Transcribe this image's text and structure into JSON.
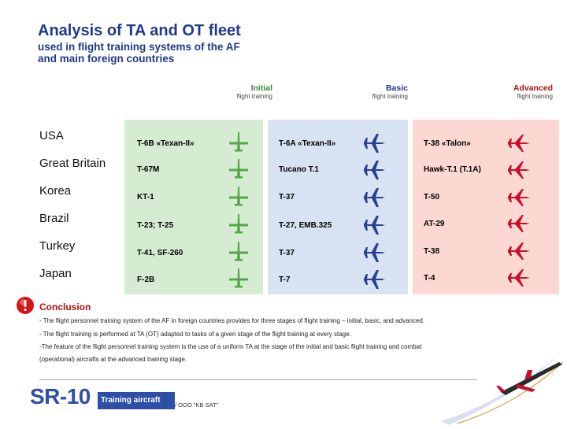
{
  "header": {
    "title": "Analysis of TA and OT fleet",
    "subtitle_line1": "used in flight training systems of the AF",
    "subtitle_line2": "and main foreign countries"
  },
  "stages": {
    "initial": {
      "label": "Initial",
      "sub": "flight training",
      "color": "#3a8a3a"
    },
    "basic": {
      "label": "Basic",
      "sub": "flight training",
      "color": "#1f3a8a"
    },
    "advanced": {
      "label": "Advanced",
      "sub": "flight training",
      "color": "#b01010"
    }
  },
  "countries": [
    "USA",
    "Great Britain",
    "Korea",
    "Brazil",
    "Turkey",
    "Japan"
  ],
  "initial_aircraft": [
    "T-6B «Texan-II»",
    "T-67M",
    "KT-1",
    "T-23; T-25",
    "T-41, SF-260",
    "F-2B"
  ],
  "basic_aircraft": [
    "T-6A «Texan-II»",
    "Tucano T.1",
    "T-37",
    "T-27, EMB.325",
    "T-37",
    "T-7"
  ],
  "advanced_aircraft": [
    "T-38 «Talon»",
    "Hawk-T.1 (T.1A)",
    "T-50",
    "AT-29",
    "T-38",
    "T-4"
  ],
  "conclusion": {
    "title": "Conclusion",
    "lines": [
      "- The flight personnel training system of the AF in foreign countries provides for three stages of flight training – initial, basic, and advanced.",
      "- The flight training is performed at TA (OT) adapted to tasks of a given stage of the flight training at every stage.",
      "-The feature of the flight personnel training system is the use of a uniform TA at the stage of the initial and basic flight training and combat",
      "(operational) aircrafts at the advanced training stage."
    ]
  },
  "footer": {
    "logo": "SR-10",
    "logo_sub": "Training aircraft",
    "company": "/ OOO \"KB SAT\""
  },
  "icons": {
    "alert": "exclamation-icon",
    "initial_plane": "propeller-plane-icon",
    "basic_plane": "trainer-jet-icon",
    "advanced_plane": "fighter-jet-icon"
  }
}
